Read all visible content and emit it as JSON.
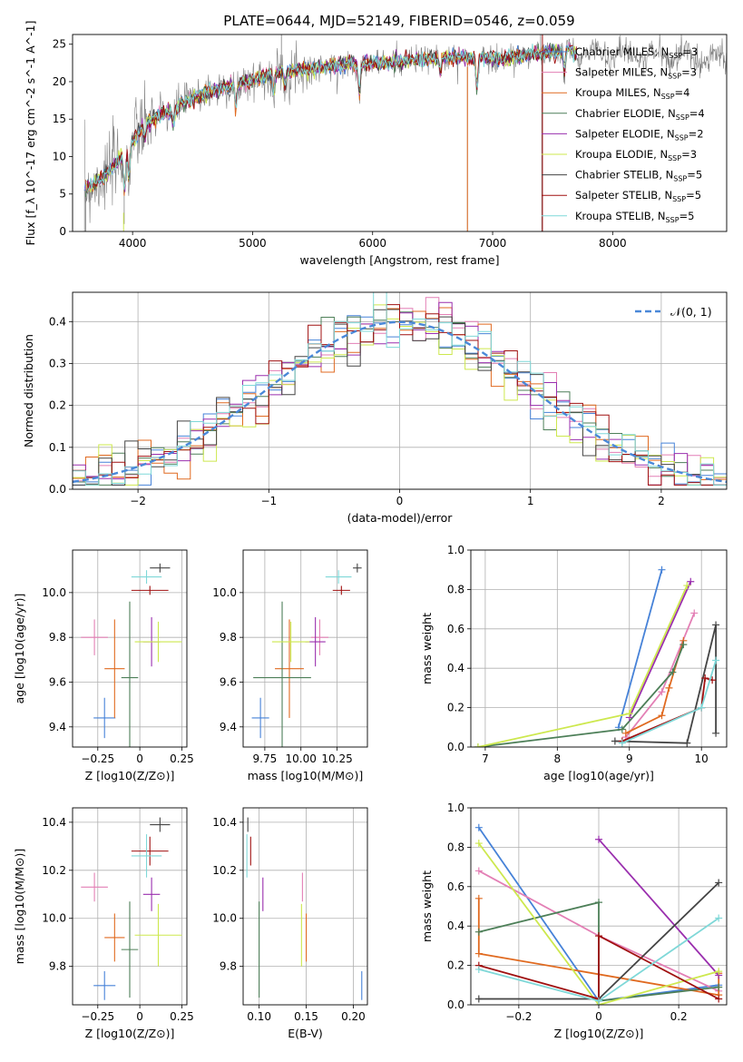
{
  "page_title": "PLATE=0644, MJD=52149, FIBERID=0546, z=0.059",
  "colors": {
    "Chabrier MILES": "#4682d8",
    "Salpeter MILES": "#e37fb5",
    "Kroupa MILES": "#e06a20",
    "Chabrier ELODIE": "#4d7f58",
    "Salpeter ELODIE": "#9a2fae",
    "Kroupa ELODIE": "#cde84e",
    "Chabrier STELIB": "#444444",
    "Salpeter STELIB": "#a01010",
    "Kroupa STELIB": "#7fd8d8",
    "gaussian": "#4a88d8",
    "spectrum": "#808080"
  },
  "chart_data": [
    {
      "id": "spectrum",
      "type": "line",
      "title": "PLATE=0644, MJD=52149, FIBERID=0546, z=0.059",
      "xlabel": "wavelength [Angstrom, rest frame]",
      "ylabel": "Flux [f_λ 10^-17 erg cm^-2 s^-1 A^-1]",
      "xlim": [
        3500,
        8950
      ],
      "ylim": [
        0,
        26.3
      ],
      "xticks": [
        4000,
        5000,
        6000,
        7000,
        8000
      ],
      "yticks": [
        0,
        5,
        10,
        15,
        20,
        25
      ],
      "grid": false,
      "legend_position": "top-right",
      "series": [
        {
          "name": "Chabrier MILES",
          "nssp": "3"
        },
        {
          "name": "Salpeter MILES",
          "nssp": "3"
        },
        {
          "name": "Kroupa MILES",
          "nssp": "4"
        },
        {
          "name": "Chabrier ELODIE",
          "nssp": "4"
        },
        {
          "name": "Salpeter ELODIE",
          "nssp": "2"
        },
        {
          "name": "Kroupa ELODIE",
          "nssp": "3"
        },
        {
          "name": "Chabrier STELIB",
          "nssp": "5"
        },
        {
          "name": "Salpeter STELIB",
          "nssp": "5"
        },
        {
          "name": "Kroupa STELIB",
          "nssp": "5"
        }
      ],
      "continuum_x": [
        3600,
        3700,
        3800,
        3900,
        4000,
        4100,
        4200,
        4300,
        4400,
        4600,
        4800,
        5000,
        5200,
        5500,
        5800,
        6100,
        6400,
        6700,
        7000,
        7300,
        7600
      ],
      "continuum_y": [
        5.6,
        6.6,
        7.8,
        9.8,
        12.0,
        14.2,
        15.3,
        15.9,
        17.0,
        18.4,
        19.4,
        20.2,
        21.3,
        21.7,
        22.4,
        22.5,
        23.0,
        23.3,
        23.0,
        23.6,
        24.0
      ],
      "data_x_range": [
        3600,
        8950
      ]
    },
    {
      "id": "residuals",
      "type": "histogram",
      "xlabel": "(data-model)/error",
      "ylabel": "Normed distribution",
      "xlim": [
        -2.5,
        2.5
      ],
      "ylim": [
        0,
        0.47
      ],
      "xticks": [
        -2,
        -1,
        0,
        1,
        2
      ],
      "yticks": [
        0.0,
        0.1,
        0.2,
        0.3,
        0.4
      ],
      "grid": true,
      "legend": "𝒩(0, 1)",
      "legend_position": "top-right",
      "bin_width": 0.1,
      "note": "one step-histogram per model, close to a unit normal"
    },
    {
      "id": "age-vs-z",
      "type": "scatter",
      "xlabel": "Z [log10(Z/Z⊙)]",
      "ylabel": "age [log10(age/yr)]",
      "xlim": [
        -0.4,
        0.28
      ],
      "ylim": [
        9.31,
        10.19
      ],
      "xticks": [
        -0.25,
        0.0,
        0.25
      ],
      "yticks": [
        9.4,
        9.6,
        9.8,
        10.0
      ],
      "grid": true
    },
    {
      "id": "age-vs-mass",
      "type": "scatter",
      "xlabel": "mass [log10(M/M⊙)]",
      "ylabel": "",
      "xlim": [
        9.6,
        10.46
      ],
      "ylim": [
        9.31,
        10.19
      ],
      "xticks": [
        9.75,
        10.0,
        10.25
      ],
      "yticks": [
        9.4,
        9.6,
        9.8,
        10.0
      ],
      "grid": true
    },
    {
      "id": "weight-vs-age",
      "type": "line",
      "xlabel": "age [log10(age/yr)]",
      "ylabel": "mass weight",
      "xlim": [
        6.8,
        10.35
      ],
      "ylim": [
        0,
        1.0
      ],
      "xticks": [
        7,
        8,
        9,
        10
      ],
      "yticks": [
        0.0,
        0.2,
        0.4,
        0.6,
        0.8,
        1.0
      ],
      "grid": true
    },
    {
      "id": "mass-vs-z",
      "type": "scatter",
      "xlabel": "Z [log10(Z/Z⊙)]",
      "ylabel": "mass [log10(M/M⊙)]",
      "xlim": [
        -0.4,
        0.28
      ],
      "ylim": [
        9.64,
        10.46
      ],
      "xticks": [
        -0.25,
        0.0,
        0.25
      ],
      "yticks": [
        9.8,
        10.0,
        10.2,
        10.4
      ],
      "grid": true
    },
    {
      "id": "mass-vs-ebv",
      "type": "scatter",
      "xlabel": "E(B-V)",
      "ylabel": "",
      "xlim": [
        0.083,
        0.215
      ],
      "ylim": [
        9.64,
        10.46
      ],
      "xticks": [
        0.1,
        0.15,
        0.2
      ],
      "yticks": [
        9.8,
        10.0,
        10.2,
        10.4
      ],
      "grid": true
    },
    {
      "id": "weight-vs-z",
      "type": "line",
      "xlabel": "Z [log10(Z/Z⊙)]",
      "ylabel": "mass weight",
      "xlim": [
        -0.32,
        0.32
      ],
      "ylim": [
        0,
        1.0
      ],
      "xticks": [
        -0.2,
        0.0,
        0.2
      ],
      "yticks": [
        0.0,
        0.2,
        0.4,
        0.6,
        0.8,
        1.0
      ],
      "grid": true
    }
  ],
  "models": [
    {
      "name": "Chabrier MILES",
      "z": -0.21,
      "zerr": 0.065,
      "age": 9.44,
      "ageerr": 0.09,
      "mass": 9.72,
      "masserr": 0.06,
      "ebv": 0.209,
      "agepts": [
        [
          8.85,
          0.1
        ],
        [
          9.45,
          0.9
        ]
      ],
      "zpts": [
        [
          -0.3,
          0.9
        ],
        [
          0.0,
          0.02
        ],
        [
          0.3,
          0.1
        ]
      ]
    },
    {
      "name": "Salpeter MILES",
      "z": -0.27,
      "zerr": 0.08,
      "age": 9.8,
      "ageerr": 0.08,
      "mass": 10.13,
      "masserr": 0.06,
      "ebv": 0.146,
      "agepts": [
        [
          8.95,
          0.05
        ],
        [
          9.45,
          0.28
        ],
        [
          9.9,
          0.68
        ]
      ],
      "zpts": [
        [
          -0.3,
          0.68
        ],
        [
          0.0,
          0.35
        ],
        [
          0.3,
          0.07
        ]
      ]
    },
    {
      "name": "Kroupa MILES",
      "z": -0.15,
      "zerr": 0.06,
      "age": 9.66,
      "ageerr": 0.22,
      "mass": 9.92,
      "masserr": 0.1,
      "ebv": 0.15,
      "agepts": [
        [
          8.95,
          0.07
        ],
        [
          9.45,
          0.16
        ],
        [
          9.55,
          0.3
        ],
        [
          9.75,
          0.54
        ]
      ],
      "zpts": [
        [
          -0.3,
          0.54
        ],
        [
          -0.3,
          0.26
        ],
        [
          0.3,
          0.05
        ],
        [
          0.3,
          0.16
        ]
      ]
    },
    {
      "name": "Chabrier ELODIE",
      "z": -0.06,
      "zerr": 0.05,
      "age": 9.62,
      "ageerr": 0.34,
      "mass": 9.87,
      "masserr": 0.2,
      "ebv": 0.1,
      "agepts": [
        [
          6.9,
          0.0
        ],
        [
          8.9,
          0.09
        ],
        [
          9.6,
          0.38
        ],
        [
          9.75,
          0.52
        ]
      ],
      "zpts": [
        [
          -0.3,
          0.37
        ],
        [
          0.0,
          0.52
        ],
        [
          0.0,
          0.02
        ],
        [
          0.3,
          0.09
        ]
      ]
    },
    {
      "name": "Salpeter ELODIE",
      "z": 0.07,
      "zerr": 0.05,
      "age": 9.78,
      "ageerr": 0.11,
      "mass": 10.1,
      "masserr": 0.07,
      "ebv": 0.104,
      "agepts": [
        [
          9.0,
          0.15
        ],
        [
          9.85,
          0.84
        ]
      ],
      "zpts": [
        [
          0.0,
          0.84
        ],
        [
          0.3,
          0.15
        ]
      ]
    },
    {
      "name": "Kroupa ELODIE",
      "z": 0.11,
      "zerr": 0.14,
      "age": 9.78,
      "ageerr": 0.09,
      "mass": 9.93,
      "masserr": 0.13,
      "ebv": 0.145,
      "agepts": [
        [
          6.9,
          0.0
        ],
        [
          9.0,
          0.17
        ],
        [
          9.8,
          0.82
        ]
      ],
      "zpts": [
        [
          -0.3,
          0.82
        ],
        [
          0.0,
          0.0
        ],
        [
          0.3,
          0.17
        ]
      ]
    },
    {
      "name": "Chabrier STELIB",
      "z": 0.12,
      "zerr": 0.06,
      "age": 10.11,
      "ageerr": 0.02,
      "mass": 10.39,
      "masserr": 0.03,
      "ebv": 0.088,
      "agepts": [
        [
          8.8,
          0.03
        ],
        [
          9.8,
          0.02
        ],
        [
          10.2,
          0.62
        ],
        [
          10.2,
          0.07
        ]
      ],
      "zpts": [
        [
          -0.3,
          0.03
        ],
        [
          0.0,
          0.03
        ],
        [
          0.3,
          0.62
        ]
      ]
    },
    {
      "name": "Salpeter STELIB",
      "z": 0.06,
      "zerr": 0.11,
      "age": 10.01,
      "ageerr": 0.02,
      "mass": 10.28,
      "masserr": 0.06,
      "ebv": 0.091,
      "agepts": [
        [
          8.9,
          0.03
        ],
        [
          10.0,
          0.2
        ],
        [
          10.05,
          0.35
        ],
        [
          10.15,
          0.34
        ]
      ],
      "zpts": [
        [
          -0.3,
          0.2
        ],
        [
          0.0,
          0.03
        ],
        [
          0.0,
          0.35
        ],
        [
          0.3,
          0.03
        ]
      ]
    },
    {
      "name": "Kroupa STELIB",
      "z": 0.04,
      "zerr": 0.09,
      "age": 10.07,
      "ageerr": 0.03,
      "mass": 10.26,
      "masserr": 0.09,
      "ebv": 0.087,
      "agepts": [
        [
          8.9,
          0.02
        ],
        [
          10.0,
          0.2
        ],
        [
          10.2,
          0.44
        ]
      ],
      "zpts": [
        [
          -0.3,
          0.18
        ],
        [
          0.0,
          0.02
        ],
        [
          0.3,
          0.44
        ]
      ]
    }
  ]
}
